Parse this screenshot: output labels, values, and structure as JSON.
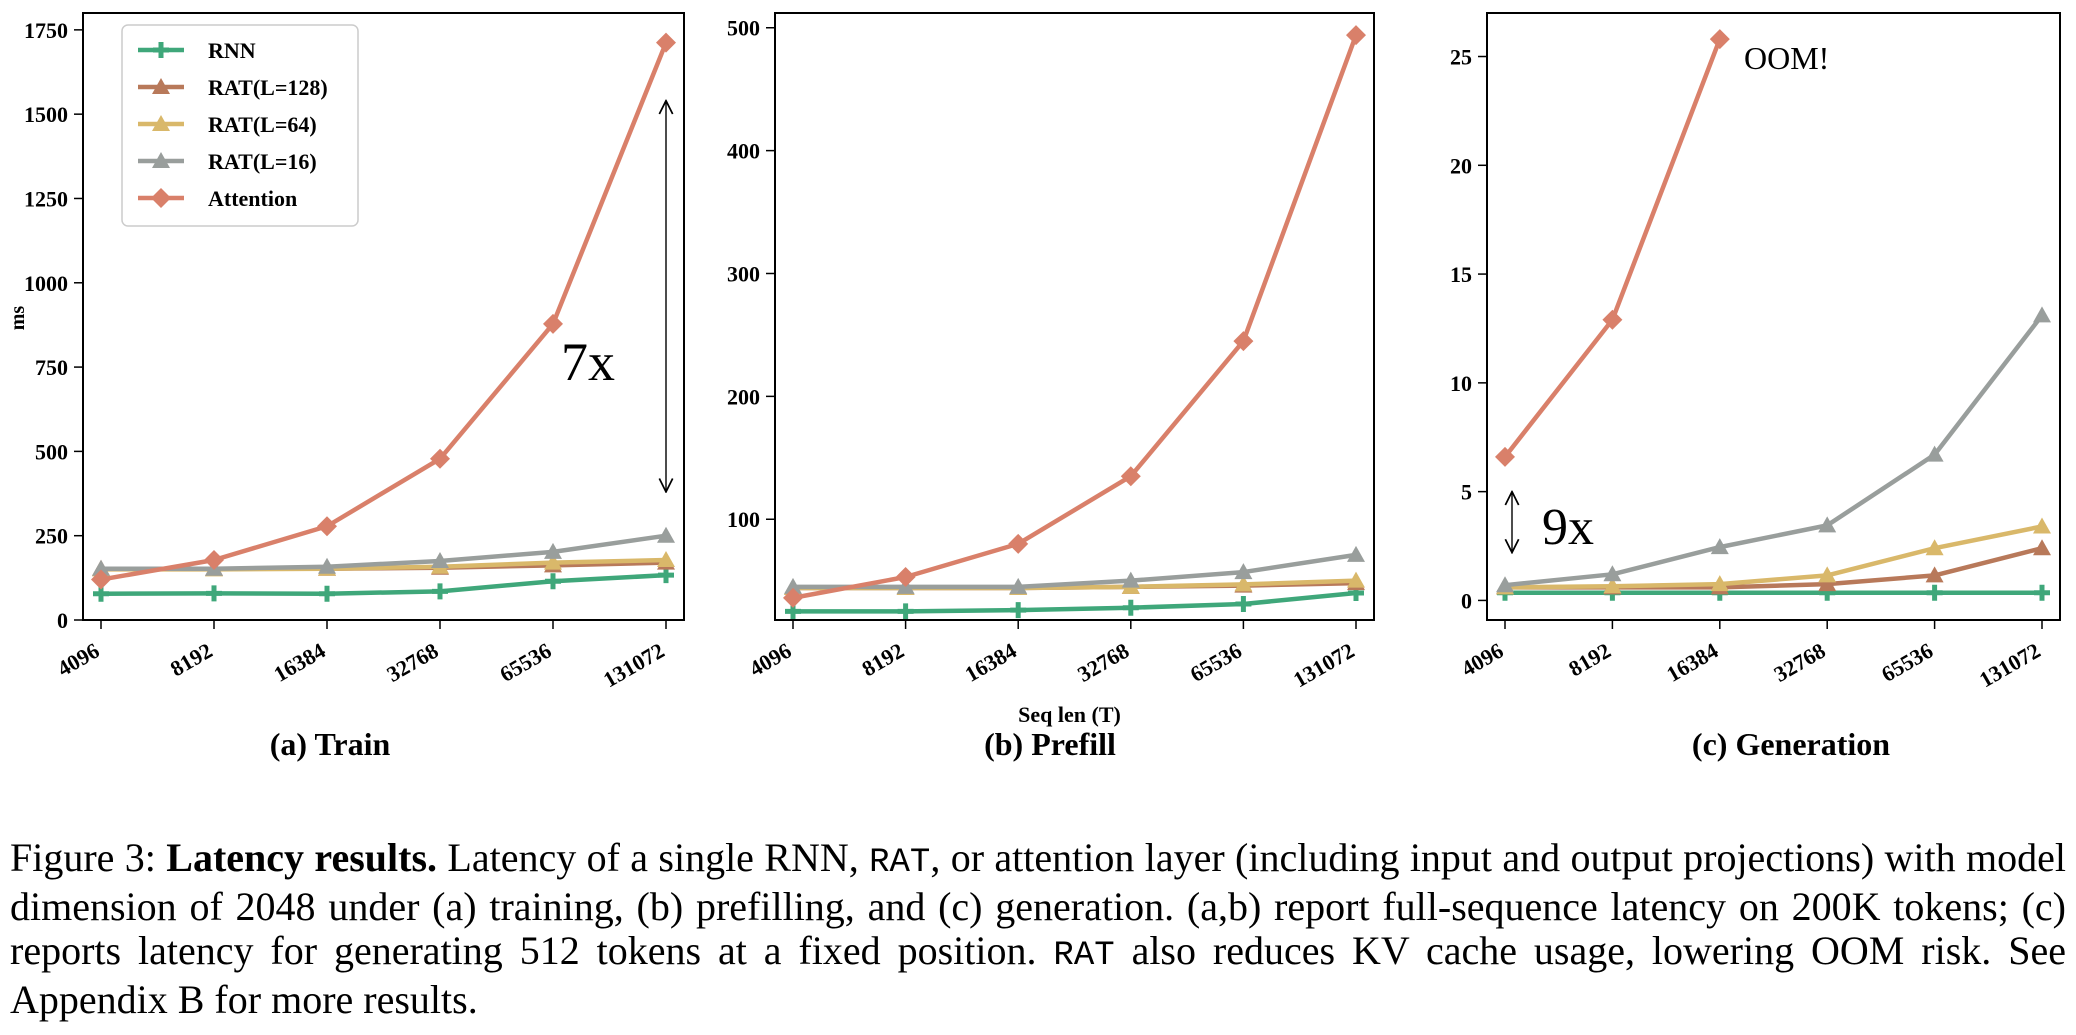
{
  "chart_data": [
    {
      "type": "line",
      "subtitle": "(a) Train",
      "ylabel": "ms",
      "xlabel": "",
      "categories": [
        "4096",
        "8192",
        "16384",
        "32768",
        "65536",
        "131072"
      ],
      "ylim": [
        0,
        1800
      ],
      "yticks": [
        0,
        250,
        500,
        750,
        1000,
        1250,
        1500,
        1750
      ],
      "legend": "top-left",
      "series": [
        {
          "name": "RNN",
          "color": "#3fa77a",
          "marker": "plus",
          "values": [
            78,
            79,
            78,
            85,
            115,
            133
          ]
        },
        {
          "name": "RAT(L=128)",
          "color": "#b8795a",
          "marker": "triangle",
          "values": [
            152,
            152,
            152,
            155,
            162,
            170
          ]
        },
        {
          "name": "RAT(L=64)",
          "color": "#d9b86a",
          "marker": "triangle",
          "values": [
            150,
            150,
            152,
            158,
            170,
            178
          ]
        },
        {
          "name": "RAT(L=16)",
          "color": "#999e9c",
          "marker": "triangle",
          "values": [
            152,
            152,
            158,
            175,
            202,
            250
          ]
        },
        {
          "name": "Attention",
          "color": "#d9806a",
          "marker": "diamond",
          "values": [
            120,
            178,
            278,
            478,
            878,
            1712
          ]
        }
      ],
      "annotation": {
        "text": "7x",
        "arrow_from": 1540,
        "arrow_to": 380
      }
    },
    {
      "type": "line",
      "subtitle": "(b) Prefill",
      "xlabel": "Seq len (T)",
      "ylabel": "",
      "categories": [
        "4096",
        "8192",
        "16384",
        "32768",
        "65536",
        "131072"
      ],
      "ylim": [
        18,
        512
      ],
      "yticks": [
        100,
        200,
        300,
        400,
        500
      ],
      "series": [
        {
          "name": "RNN",
          "color": "#3fa77a",
          "marker": "plus",
          "values": [
            25,
            25,
            26,
            28,
            31,
            40
          ]
        },
        {
          "name": "RAT(L=128)",
          "color": "#b8795a",
          "marker": "triangle",
          "values": [
            44,
            44,
            44,
            45,
            46,
            48
          ]
        },
        {
          "name": "RAT(L=64)",
          "color": "#d9b86a",
          "marker": "triangle",
          "values": [
            44,
            44,
            44,
            45,
            47,
            50
          ]
        },
        {
          "name": "RAT(L=16)",
          "color": "#999e9c",
          "marker": "triangle",
          "values": [
            45,
            45,
            45,
            50,
            57,
            71
          ]
        },
        {
          "name": "Attention",
          "color": "#d9806a",
          "marker": "diamond",
          "values": [
            36,
            53,
            80,
            135,
            245,
            494
          ]
        }
      ]
    },
    {
      "type": "line",
      "subtitle": "(c) Generation",
      "xlabel": "",
      "ylabel": "",
      "categories": [
        "4096",
        "8192",
        "16384",
        "32768",
        "65536",
        "131072"
      ],
      "ylim": [
        -0.9,
        27
      ],
      "yticks": [
        0,
        5,
        10,
        15,
        20,
        25
      ],
      "series": [
        {
          "name": "RNN",
          "color": "#3fa77a",
          "marker": "plus",
          "values": [
            0.35,
            0.35,
            0.35,
            0.35,
            0.35,
            0.35
          ]
        },
        {
          "name": "RAT(L=128)",
          "color": "#b8795a",
          "marker": "triangle",
          "values": [
            0.6,
            0.6,
            0.6,
            0.75,
            1.15,
            2.4
          ]
        },
        {
          "name": "RAT(L=64)",
          "color": "#d9b86a",
          "marker": "triangle",
          "values": [
            0.6,
            0.65,
            0.75,
            1.15,
            2.4,
            3.4
          ]
        },
        {
          "name": "RAT(L=16)",
          "color": "#999e9c",
          "marker": "triangle",
          "values": [
            0.7,
            1.2,
            2.45,
            3.45,
            6.7,
            13.1
          ]
        },
        {
          "name": "Attention",
          "color": "#d9806a",
          "marker": "diamond",
          "values": [
            6.6,
            12.9,
            25.8,
            null,
            null,
            null
          ]
        }
      ],
      "annotations": [
        {
          "text": "OOM!"
        },
        {
          "text": "9x",
          "arrow_from": 5.0,
          "arrow_to": 2.2
        }
      ]
    }
  ],
  "caption": {
    "label": "Figure 3: ",
    "title": "Latency results.",
    "part1": " Latency of a single RNN, ",
    "rat1": "RAT",
    "part2": ", or attention layer (including input and output projections) with model dimension of 2048 under (a) training, (b) prefilling, and (c) generation.  (a,b) report full-sequence latency on 200K tokens; (c) reports latency for generating 512 tokens at a fixed position. ",
    "rat2": "RAT",
    "part3": " also reduces KV cache usage, lowering OOM risk. See Appendix B for more results."
  }
}
